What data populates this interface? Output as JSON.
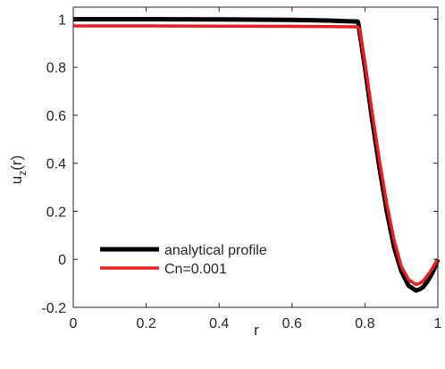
{
  "chart_data": {
    "type": "line",
    "title": "",
    "xlabel": "r",
    "ylabel": "u_z(r)",
    "ylabel_main": "u",
    "ylabel_sub": "z",
    "ylabel_tail": "(r)",
    "xlim": [
      0,
      1
    ],
    "ylim": [
      -0.2,
      1.05
    ],
    "x_ticks": [
      0,
      0.2,
      0.4,
      0.6,
      0.8,
      1
    ],
    "x_tick_labels": [
      "0",
      "0.2",
      "0.4",
      "0.6",
      "0.8",
      "1"
    ],
    "y_ticks": [
      -0.2,
      0,
      0.2,
      0.4,
      0.6,
      0.8,
      1
    ],
    "y_tick_labels": [
      "-0.2",
      "0",
      "0.2",
      "0.4",
      "0.6",
      "0.8",
      "1"
    ],
    "grid": false,
    "legend_position": "bottom-left",
    "series": [
      {
        "name": "analytical profile",
        "color": "#000000",
        "x": [
          0,
          0.2,
          0.4,
          0.6,
          0.7,
          0.78,
          0.782,
          0.8,
          0.82,
          0.84,
          0.86,
          0.88,
          0.9,
          0.92,
          0.94,
          0.95,
          0.96,
          0.97,
          0.98,
          0.99,
          1.0
        ],
        "y": [
          1.0,
          1.0,
          0.999,
          0.997,
          0.994,
          0.99,
          0.98,
          0.8,
          0.58,
          0.38,
          0.2,
          0.05,
          -0.05,
          -0.11,
          -0.13,
          -0.125,
          -0.115,
          -0.095,
          -0.07,
          -0.04,
          0.0
        ]
      },
      {
        "name": "Cn=0.001",
        "color": "#ee1c1c",
        "x": [
          0,
          0.2,
          0.4,
          0.6,
          0.7,
          0.78,
          0.785,
          0.8,
          0.82,
          0.84,
          0.86,
          0.88,
          0.9,
          0.92,
          0.94,
          0.95,
          0.96,
          0.97,
          0.98,
          0.99,
          1.0
        ],
        "y": [
          0.972,
          0.972,
          0.971,
          0.97,
          0.969,
          0.968,
          0.96,
          0.82,
          0.61,
          0.41,
          0.23,
          0.08,
          -0.03,
          -0.085,
          -0.105,
          -0.1,
          -0.09,
          -0.07,
          -0.05,
          -0.025,
          0.0
        ]
      }
    ]
  }
}
